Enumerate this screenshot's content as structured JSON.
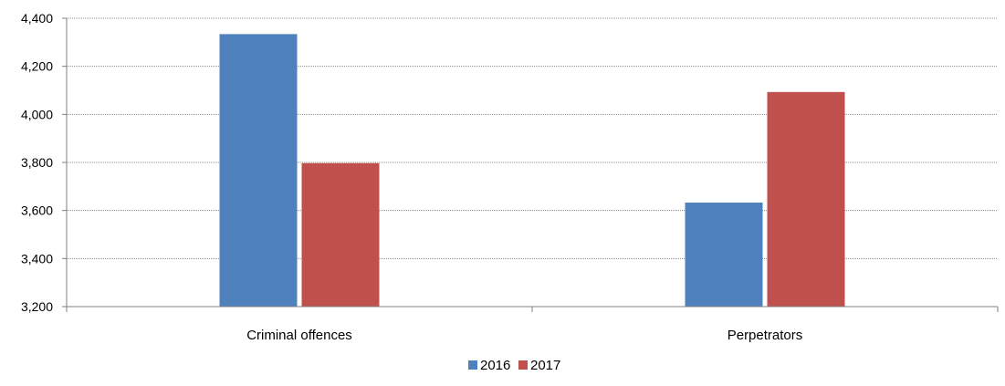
{
  "chart_data": {
    "type": "bar",
    "categories": [
      "Criminal offences",
      "Perpetrators"
    ],
    "series": [
      {
        "name": "2016",
        "values": [
          4334,
          3633
        ],
        "color": "#4f81bd"
      },
      {
        "name": "2017",
        "values": [
          3797,
          4093
        ],
        "color": "#c0504d"
      }
    ],
    "ylim": [
      3200,
      4400
    ],
    "yticks": [
      "3,200",
      "3,400",
      "3,600",
      "3,800",
      "4,000",
      "4,200",
      "4,400"
    ],
    "ytick_values": [
      3200,
      3400,
      3600,
      3800,
      4000,
      4200,
      4400
    ],
    "grid": true,
    "legend_position": "bottom",
    "title": "",
    "xlabel": "",
    "ylabel": ""
  }
}
